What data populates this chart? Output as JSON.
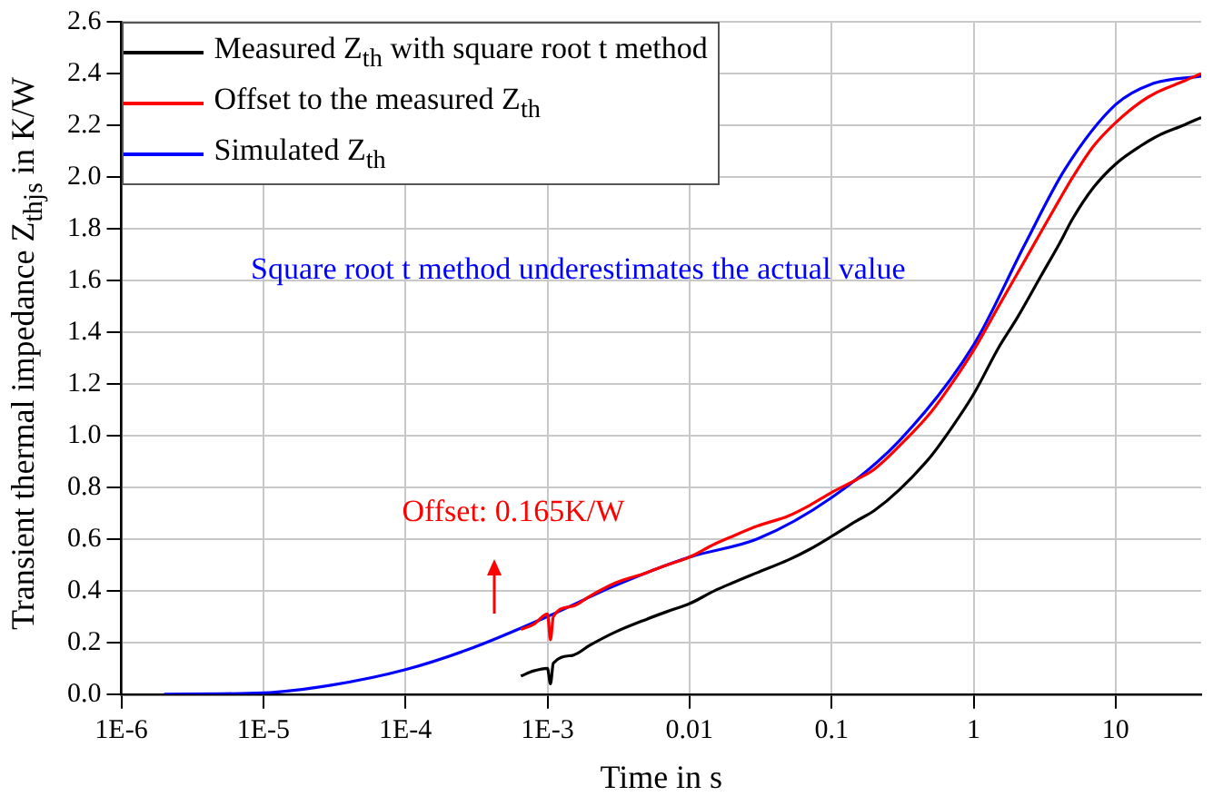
{
  "chart_data": {
    "type": "line",
    "xlabel": "Time in s",
    "ylabel": "Transient thermal impedance Z$_{thjs}$ in K/W",
    "log": "x",
    "xlim": [
      1e-06,
      40
    ],
    "xticks": [
      {
        "value": 1e-06,
        "label": "1E-6"
      },
      {
        "value": 1e-05,
        "label": "1E-5"
      },
      {
        "value": 0.0001,
        "label": "1E-4"
      },
      {
        "value": 0.001,
        "label": "1E-3"
      },
      0.01,
      0.1,
      1,
      10
    ],
    "ylim": [
      0,
      2.6
    ],
    "yticks": [
      {
        "value": 0,
        "label": "0.0"
      },
      0.2,
      0.4,
      0.6,
      0.8,
      {
        "value": 1,
        "label": "1.0"
      },
      1.2,
      1.4,
      1.6,
      1.8,
      {
        "value": 2,
        "label": "2.0"
      },
      2.2,
      2.4,
      2.6
    ],
    "grid": true,
    "legend": "top left",
    "marker": "none",
    "line_style": "solid",
    "annotations": [
      "Square root t method underestimates the actual value",
      "Offset: 0.165K/W"
    ],
    "series": [
      {
        "name": "Measured Z$_{th}$ with square root t method",
        "color": "#000000",
        "x": [
          0.00065,
          0.0008,
          0.001,
          0.00105,
          0.0011,
          0.0015,
          0.002,
          0.003,
          0.005,
          0.007,
          0.01,
          0.015,
          0.02,
          0.03,
          0.05,
          0.07,
          0.1,
          0.15,
          0.2,
          0.3,
          0.5,
          0.7,
          1,
          1.5,
          2,
          3,
          4,
          5,
          7,
          10,
          15,
          20,
          30,
          40
        ],
        "values": [
          0.07,
          0.09,
          0.1,
          0.04,
          0.12,
          0.15,
          0.19,
          0.24,
          0.29,
          0.32,
          0.35,
          0.4,
          0.43,
          0.47,
          0.52,
          0.56,
          0.61,
          0.67,
          0.71,
          0.79,
          0.92,
          1.03,
          1.16,
          1.34,
          1.45,
          1.62,
          1.74,
          1.84,
          1.96,
          2.05,
          2.12,
          2.16,
          2.2,
          2.23
        ]
      },
      {
        "name": "Offset to the measured Z$_{th}$",
        "color": "#ff0000",
        "x": [
          0.00065,
          0.0008,
          0.001,
          0.00105,
          0.0011,
          0.0015,
          0.002,
          0.003,
          0.005,
          0.007,
          0.01,
          0.015,
          0.02,
          0.03,
          0.05,
          0.07,
          0.1,
          0.15,
          0.2,
          0.3,
          0.5,
          0.7,
          1,
          1.5,
          2,
          3,
          4,
          5,
          7,
          10,
          15,
          20,
          30,
          40
        ],
        "values": [
          0.25,
          0.27,
          0.31,
          0.21,
          0.3,
          0.34,
          0.38,
          0.43,
          0.47,
          0.5,
          0.53,
          0.58,
          0.61,
          0.65,
          0.69,
          0.73,
          0.78,
          0.83,
          0.87,
          0.96,
          1.09,
          1.2,
          1.33,
          1.5,
          1.62,
          1.79,
          1.91,
          2.0,
          2.12,
          2.21,
          2.29,
          2.33,
          2.37,
          2.4
        ]
      },
      {
        "name": "Simulated Z$_{th}$",
        "color": "#0000ff",
        "x": [
          2e-06,
          1e-05,
          3e-05,
          0.0001,
          0.0003,
          0.001,
          0.003,
          0.01,
          0.03,
          0.1,
          0.3,
          1,
          2.3,
          4.4,
          10,
          18,
          40
        ],
        "values": [
          0,
          0.005,
          0.035,
          0.095,
          0.18,
          0.3,
          0.42,
          0.53,
          0.6,
          0.76,
          0.98,
          1.35,
          1.74,
          2.03,
          2.28,
          2.36,
          2.39
        ]
      }
    ]
  }
}
